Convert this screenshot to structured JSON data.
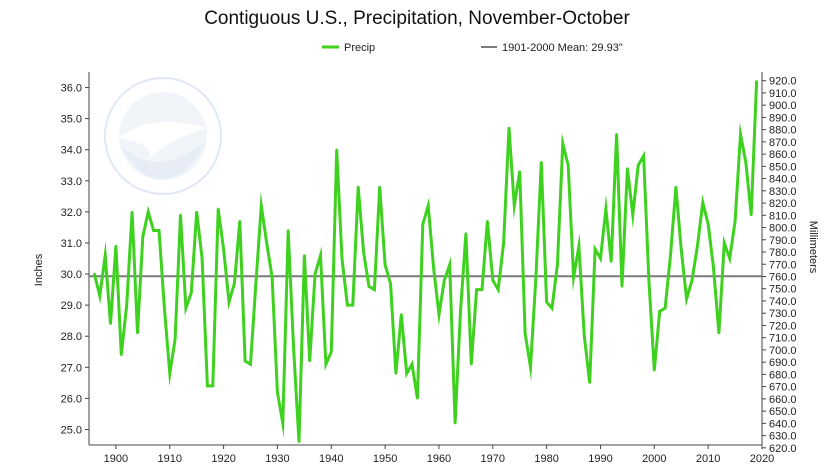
{
  "chart_data": {
    "type": "line",
    "title": "Contiguous U.S., Precipitation, November-October",
    "ylabel_left": "Inches",
    "ylabel_right": "Millimeters",
    "xlim": [
      1895,
      2020
    ],
    "ylim": [
      24.5,
      36.5
    ],
    "xticks": [
      1900,
      1910,
      1920,
      1930,
      1940,
      1950,
      1960,
      1970,
      1980,
      1990,
      2000,
      2010,
      2020
    ],
    "yticks_left": [
      "25.0",
      "26.0",
      "27.0",
      "28.0",
      "29.0",
      "30.0",
      "31.0",
      "32.0",
      "33.0",
      "34.0",
      "35.0",
      "36.0"
    ],
    "yticks_right": [
      "620.0",
      "630.0",
      "640.0",
      "650.0",
      "660.0",
      "670.0",
      "680.0",
      "690.0",
      "700.0",
      "710.0",
      "720.0",
      "730.0",
      "740.0",
      "750.0",
      "760.0",
      "770.0",
      "780.0",
      "790.0",
      "800.0",
      "810.0",
      "820.0",
      "830.0",
      "840.0",
      "850.0",
      "860.0",
      "870.0",
      "880.0",
      "890.0",
      "900.0",
      "910.0",
      "920.0"
    ],
    "legend": {
      "series_label": "Precip",
      "mean_label": "1901-2000 Mean: 29.93\""
    },
    "mean": 29.93,
    "colors": {
      "series": "#3fd11f",
      "mean": "#7a7a7a",
      "axis": "#444444"
    },
    "series": [
      {
        "name": "Precip",
        "x": [
          1896,
          1897,
          1898,
          1899,
          1900,
          1901,
          1902,
          1903,
          1904,
          1905,
          1906,
          1907,
          1908,
          1909,
          1910,
          1911,
          1912,
          1913,
          1914,
          1915,
          1916,
          1917,
          1918,
          1919,
          1920,
          1921,
          1922,
          1923,
          1924,
          1925,
          1926,
          1927,
          1928,
          1929,
          1930,
          1931,
          1932,
          1933,
          1934,
          1935,
          1936,
          1937,
          1938,
          1939,
          1940,
          1941,
          1942,
          1943,
          1944,
          1945,
          1946,
          1947,
          1948,
          1949,
          1950,
          1951,
          1952,
          1953,
          1954,
          1955,
          1956,
          1957,
          1958,
          1959,
          1960,
          1961,
          1962,
          1963,
          1964,
          1965,
          1966,
          1967,
          1968,
          1969,
          1970,
          1971,
          1972,
          1973,
          1974,
          1975,
          1976,
          1977,
          1978,
          1979,
          1980,
          1981,
          1982,
          1983,
          1984,
          1985,
          1986,
          1987,
          1988,
          1989,
          1990,
          1991,
          1992,
          1993,
          1994,
          1995,
          1996,
          1997,
          1998,
          1999,
          2000,
          2001,
          2002,
          2003,
          2004,
          2005,
          2006,
          2007,
          2008,
          2009,
          2010,
          2011,
          2012,
          2013,
          2014,
          2015,
          2016,
          2017,
          2018,
          2019
        ],
        "values": [
          30.0,
          29.3,
          30.6,
          28.4,
          30.9,
          27.4,
          29.0,
          32.0,
          28.1,
          31.2,
          32.0,
          31.4,
          31.4,
          28.9,
          26.8,
          27.9,
          31.9,
          28.9,
          29.4,
          32.0,
          30.5,
          26.4,
          26.4,
          32.1,
          30.8,
          29.1,
          29.7,
          31.7,
          27.2,
          27.1,
          29.7,
          32.2,
          31.0,
          29.9,
          26.2,
          25.2,
          31.4,
          27.6,
          24.6,
          30.6,
          27.2,
          30.0,
          30.6,
          27.1,
          27.5,
          34.0,
          30.5,
          29.0,
          29.0,
          32.8,
          30.7,
          29.6,
          29.5,
          32.8,
          30.3,
          29.7,
          26.8,
          28.7,
          26.8,
          27.1,
          26.0,
          31.6,
          32.2,
          30.2,
          28.7,
          29.8,
          30.3,
          25.2,
          28.8,
          31.3,
          27.1,
          29.5,
          29.5,
          31.7,
          29.8,
          29.5,
          31.0,
          34.7,
          32.2,
          33.3,
          28.1,
          27.0,
          29.9,
          33.6,
          29.1,
          28.9,
          30.3,
          34.2,
          33.5,
          29.9,
          30.9,
          28.0,
          26.5,
          30.8,
          30.5,
          32.1,
          30.4,
          34.5,
          29.6,
          33.4,
          31.9,
          33.5,
          33.8,
          29.8,
          26.9,
          28.8,
          28.9,
          30.6,
          32.8,
          30.8,
          29.2,
          29.8,
          30.9,
          32.3,
          31.6,
          30.2,
          28.1,
          31.0,
          30.5,
          31.7,
          34.5,
          33.6,
          31.9,
          36.2
        ]
      }
    ]
  }
}
